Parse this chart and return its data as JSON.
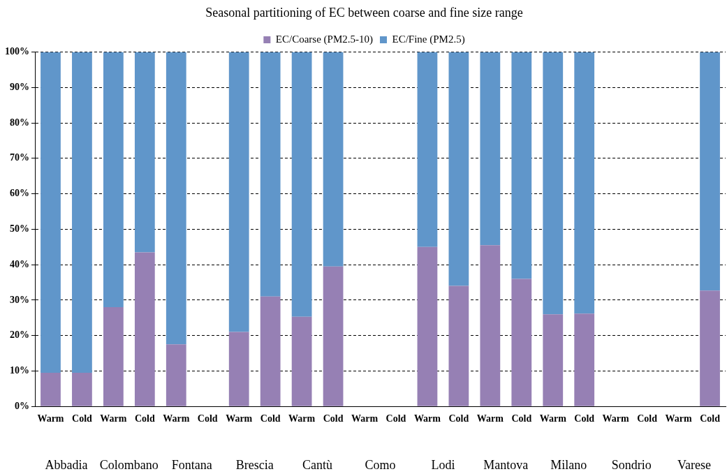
{
  "chart_data": {
    "type": "bar",
    "title": "Seasonal partitioning of EC between coarse and fine size range",
    "categories": [
      "Warm",
      "Cold",
      "Warm",
      "Cold",
      "Warm",
      "Cold",
      "Warm",
      "Cold",
      "Warm",
      "Cold",
      "Warm",
      "Cold",
      "Warm",
      "Cold",
      "Warm",
      "Cold",
      "Warm",
      "Cold",
      "Warm",
      "Cold",
      "Warm",
      "Cold"
    ],
    "series": [
      {
        "name": "EC/Coarse (PM2.5-10)",
        "color": "#9680b4",
        "values": [
          9.5,
          9.5,
          28,
          43.5,
          17.5,
          null,
          21,
          31,
          25.3,
          39.5,
          null,
          null,
          45,
          34,
          45.5,
          36,
          26,
          26.2,
          null,
          null,
          null,
          32.7
        ]
      },
      {
        "name": "EC/Fine (PM2.5)",
        "color": "#6096ca",
        "values": [
          90.5,
          90.5,
          72,
          56.5,
          82.5,
          null,
          79,
          69,
          74.7,
          60.5,
          null,
          null,
          55,
          66,
          54.5,
          64,
          74,
          73.8,
          null,
          null,
          null,
          67.3
        ]
      }
    ],
    "stacked": true,
    "ylim": [
      0,
      100
    ],
    "yticks": [
      {
        "value": 0,
        "label": "0%"
      },
      {
        "value": 10,
        "label": "10%"
      },
      {
        "value": 20,
        "label": "20%"
      },
      {
        "value": 30,
        "label": "30%"
      },
      {
        "value": 40,
        "label": "40%"
      },
      {
        "value": 50,
        "label": "50%"
      },
      {
        "value": 60,
        "label": "60%"
      },
      {
        "value": 70,
        "label": "70%"
      },
      {
        "value": 80,
        "label": "80%"
      },
      {
        "value": 90,
        "label": "90%"
      },
      {
        "value": 100,
        "label": "100%"
      }
    ],
    "grid": "y",
    "legend": "top",
    "annotations": [
      "Abbadia",
      "Colombano",
      "Fontana",
      "Brescia",
      "Cantù",
      "Como",
      "Lodi",
      "Mantova",
      "Milano",
      "Sondrio",
      "Varese"
    ]
  }
}
